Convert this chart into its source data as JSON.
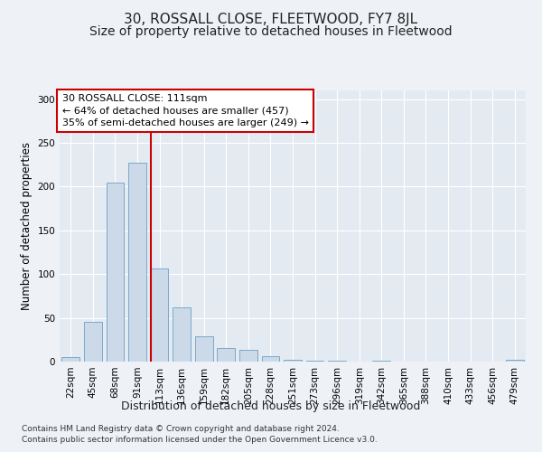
{
  "title": "30, ROSSALL CLOSE, FLEETWOOD, FY7 8JL",
  "subtitle": "Size of property relative to detached houses in Fleetwood",
  "xlabel": "Distribution of detached houses by size in Fleetwood",
  "ylabel": "Number of detached properties",
  "bar_labels": [
    "22sqm",
    "45sqm",
    "68sqm",
    "91sqm",
    "113sqm",
    "136sqm",
    "159sqm",
    "182sqm",
    "205sqm",
    "228sqm",
    "251sqm",
    "273sqm",
    "296sqm",
    "319sqm",
    "342sqm",
    "365sqm",
    "388sqm",
    "410sqm",
    "433sqm",
    "456sqm",
    "479sqm"
  ],
  "bar_values": [
    5,
    45,
    205,
    227,
    106,
    62,
    29,
    15,
    13,
    6,
    2,
    1,
    1,
    0,
    1,
    0,
    0,
    0,
    0,
    0,
    2
  ],
  "bar_color": "#ccd9e8",
  "bar_edge_color": "#7aaac8",
  "bar_edge_width": 0.7,
  "marker_bar_index": 4,
  "marker_color": "#cc0000",
  "annotation_line1": "30 ROSSALL CLOSE: 111sqm",
  "annotation_line2": "← 64% of detached houses are smaller (457)",
  "annotation_line3": "35% of semi-detached houses are larger (249) →",
  "annotation_box_color": "#ffffff",
  "annotation_box_edge": "#cc0000",
  "ylim": [
    0,
    310
  ],
  "yticks": [
    0,
    50,
    100,
    150,
    200,
    250,
    300
  ],
  "background_color": "#eef2f7",
  "plot_bg_color": "#e4eaf2",
  "grid_color": "#ffffff",
  "footnote": "Contains HM Land Registry data © Crown copyright and database right 2024.\nContains public sector information licensed under the Open Government Licence v3.0.",
  "title_fontsize": 11,
  "subtitle_fontsize": 10,
  "xlabel_fontsize": 9,
  "ylabel_fontsize": 8.5,
  "tick_fontsize": 7.5,
  "annot_fontsize": 8,
  "footnote_fontsize": 6.5
}
